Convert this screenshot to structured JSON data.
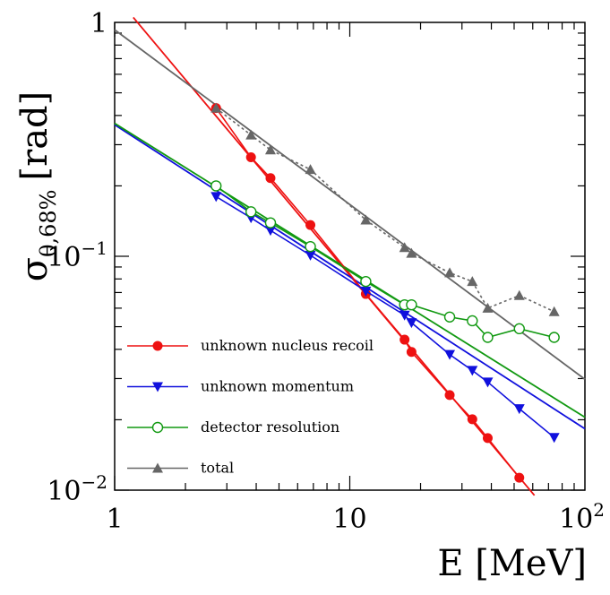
{
  "chart_data": {
    "type": "line",
    "title": "",
    "xlabel": "E [MeV]",
    "ylabel": "σθ,68% [rad]",
    "ylabel_parts": {
      "main": "σ",
      "sub": "θ,68%",
      "unit": "[rad]"
    },
    "x_scale": "log",
    "y_scale": "log",
    "xlim": [
      1,
      100
    ],
    "ylim": [
      0.01,
      1
    ],
    "x_ticks": [
      {
        "value": 1,
        "base": "1",
        "exp": ""
      },
      {
        "value": 10,
        "base": "10",
        "exp": ""
      },
      {
        "value": 100,
        "base": "10",
        "exp": "2"
      }
    ],
    "y_ticks": [
      {
        "value": 1,
        "base": "1",
        "exp": ""
      },
      {
        "value": 0.1,
        "base": "10",
        "exp": "−1"
      },
      {
        "value": 0.01,
        "base": "10",
        "exp": "−2"
      }
    ],
    "legend_position": "lower-left",
    "series": [
      {
        "name": "unknown nucleus recoil",
        "color": "#ee1111",
        "marker": "circle-filled",
        "x": [
          2.7,
          3.8,
          4.6,
          6.8,
          11.7,
          17.1,
          18.3,
          26.6,
          33.2,
          38.6,
          52.6
        ],
        "y": [
          0.43,
          0.265,
          0.216,
          0.136,
          0.069,
          0.044,
          0.039,
          0.0255,
          0.0201,
          0.0167,
          0.0113
        ],
        "fit": {
          "x": [
            1.2,
            61
          ],
          "y": [
            1.05,
            0.0095
          ]
        }
      },
      {
        "name": "unknown momentum",
        "color": "#1010dd",
        "marker": "triangle-down-filled",
        "x": [
          2.7,
          3.8,
          4.6,
          6.8,
          11.7,
          17.1,
          18.3,
          26.6,
          33.2,
          38.6,
          52.6,
          74
        ],
        "y": [
          0.18,
          0.146,
          0.129,
          0.101,
          0.071,
          0.056,
          0.052,
          0.038,
          0.0325,
          0.029,
          0.0223,
          0.0168
        ],
        "fit": {
          "x": [
            1,
            100
          ],
          "y": [
            0.365,
            0.0183
          ]
        }
      },
      {
        "name": "detector resolution",
        "color": "#119911",
        "marker": "circle-open",
        "x": [
          2.7,
          3.8,
          4.6,
          6.8,
          11.7,
          17.1,
          18.3,
          26.6,
          33.2,
          38.6,
          52.6,
          74
        ],
        "y": [
          0.2,
          0.155,
          0.139,
          0.11,
          0.078,
          0.062,
          0.062,
          0.055,
          0.053,
          0.045,
          0.049,
          0.045
        ],
        "fit": {
          "x": [
            1,
            100
          ],
          "y": [
            0.37,
            0.0205
          ]
        }
      },
      {
        "name": "total",
        "color": "#666666",
        "marker": "triangle-up-filled",
        "x": [
          2.7,
          3.8,
          4.6,
          6.8,
          11.7,
          17.1,
          18.3,
          26.6,
          33.2,
          38.6,
          52.6,
          74
        ],
        "y": [
          0.43,
          0.33,
          0.285,
          0.235,
          0.143,
          0.109,
          0.103,
          0.085,
          0.078,
          0.06,
          0.068,
          0.058
        ],
        "fit": {
          "x": [
            1,
            100
          ],
          "y": [
            0.93,
            0.0298
          ]
        },
        "line_style": "dotted"
      }
    ]
  }
}
